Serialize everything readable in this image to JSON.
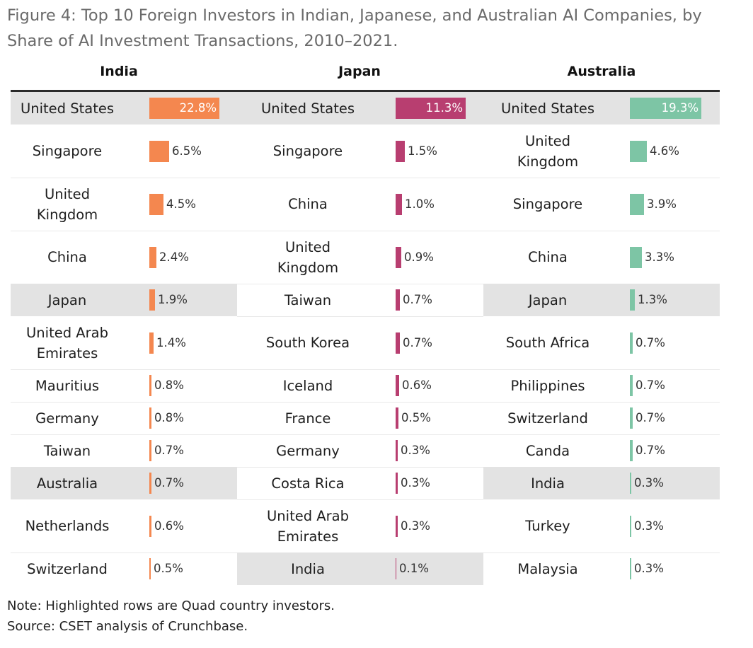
{
  "title": "Figure 4: Top 10 Foreign Investors in Indian, Japanese, and Australian AI Companies, by Share of AI Investment Transactions, 2010–2021.",
  "chart_data": {
    "type": "bar",
    "orientation": "horizontal",
    "unit": "% of AI investment transactions",
    "panels": [
      {
        "name": "India",
        "color": "#f4874f",
        "rows": [
          {
            "country": "United States",
            "value": 22.8,
            "label": "22.8%",
            "highlighted": true
          },
          {
            "country": "Singapore",
            "value": 6.5,
            "label": "6.5%",
            "highlighted": false
          },
          {
            "country": "United\nKingdom",
            "value": 4.5,
            "label": "4.5%",
            "highlighted": false
          },
          {
            "country": "China",
            "value": 2.4,
            "label": "2.4%",
            "highlighted": false
          },
          {
            "country": "Japan",
            "value": 1.9,
            "label": "1.9%",
            "highlighted": true
          },
          {
            "country": "United Arab\nEmirates",
            "value": 1.4,
            "label": "1.4%",
            "highlighted": false
          },
          {
            "country": "Mauritius",
            "value": 0.8,
            "label": "0.8%",
            "highlighted": false
          },
          {
            "country": "Germany",
            "value": 0.8,
            "label": "0.8%",
            "highlighted": false
          },
          {
            "country": "Taiwan",
            "value": 0.7,
            "label": "0.7%",
            "highlighted": false
          },
          {
            "country": "Australia",
            "value": 0.7,
            "label": "0.7%",
            "highlighted": true
          },
          {
            "country": "Netherlands",
            "value": 0.6,
            "label": "0.6%",
            "highlighted": false
          },
          {
            "country": "Switzerland",
            "value": 0.5,
            "label": "0.5%",
            "highlighted": false
          }
        ]
      },
      {
        "name": "Japan",
        "color": "#b83e70",
        "rows": [
          {
            "country": "United States",
            "value": 11.3,
            "label": "11.3%",
            "highlighted": true
          },
          {
            "country": "Singapore",
            "value": 1.5,
            "label": "1.5%",
            "highlighted": false
          },
          {
            "country": "China",
            "value": 1.0,
            "label": "1.0%",
            "highlighted": false
          },
          {
            "country": "United\nKingdom",
            "value": 0.9,
            "label": "0.9%",
            "highlighted": false
          },
          {
            "country": "Taiwan",
            "value": 0.7,
            "label": "0.7%",
            "highlighted": false
          },
          {
            "country": "South Korea",
            "value": 0.7,
            "label": "0.7%",
            "highlighted": false
          },
          {
            "country": "Iceland",
            "value": 0.6,
            "label": "0.6%",
            "highlighted": false
          },
          {
            "country": "France",
            "value": 0.5,
            "label": "0.5%",
            "highlighted": false
          },
          {
            "country": "Germany",
            "value": 0.3,
            "label": "0.3%",
            "highlighted": false
          },
          {
            "country": "Costa Rica",
            "value": 0.3,
            "label": "0.3%",
            "highlighted": false
          },
          {
            "country": "United Arab\nEmirates",
            "value": 0.3,
            "label": "0.3%",
            "highlighted": false
          },
          {
            "country": "India",
            "value": 0.1,
            "label": "0.1%",
            "highlighted": true
          }
        ]
      },
      {
        "name": "Australia",
        "color": "#7dc5a5",
        "rows": [
          {
            "country": "United States",
            "value": 19.3,
            "label": "19.3%",
            "highlighted": true
          },
          {
            "country": "United\nKingdom",
            "value": 4.6,
            "label": "4.6%",
            "highlighted": false
          },
          {
            "country": "Singapore",
            "value": 3.9,
            "label": "3.9%",
            "highlighted": false
          },
          {
            "country": "China",
            "value": 3.3,
            "label": "3.3%",
            "highlighted": false
          },
          {
            "country": "Japan",
            "value": 1.3,
            "label": "1.3%",
            "highlighted": true
          },
          {
            "country": "South Africa",
            "value": 0.7,
            "label": "0.7%",
            "highlighted": false
          },
          {
            "country": "Philippines",
            "value": 0.7,
            "label": "0.7%",
            "highlighted": false
          },
          {
            "country": "Switzerland",
            "value": 0.7,
            "label": "0.7%",
            "highlighted": false
          },
          {
            "country": "Canda",
            "value": 0.7,
            "label": "0.7%",
            "highlighted": false
          },
          {
            "country": "India",
            "value": 0.3,
            "label": "0.3%",
            "highlighted": true
          },
          {
            "country": "Turkey",
            "value": 0.3,
            "label": "0.3%",
            "highlighted": false
          },
          {
            "country": "Malaysia",
            "value": 0.3,
            "label": "0.3%",
            "highlighted": false
          }
        ]
      }
    ]
  },
  "note": "Note: Highlighted rows are Quad country investors.",
  "source": "Source: CSET analysis of Crunchbase."
}
